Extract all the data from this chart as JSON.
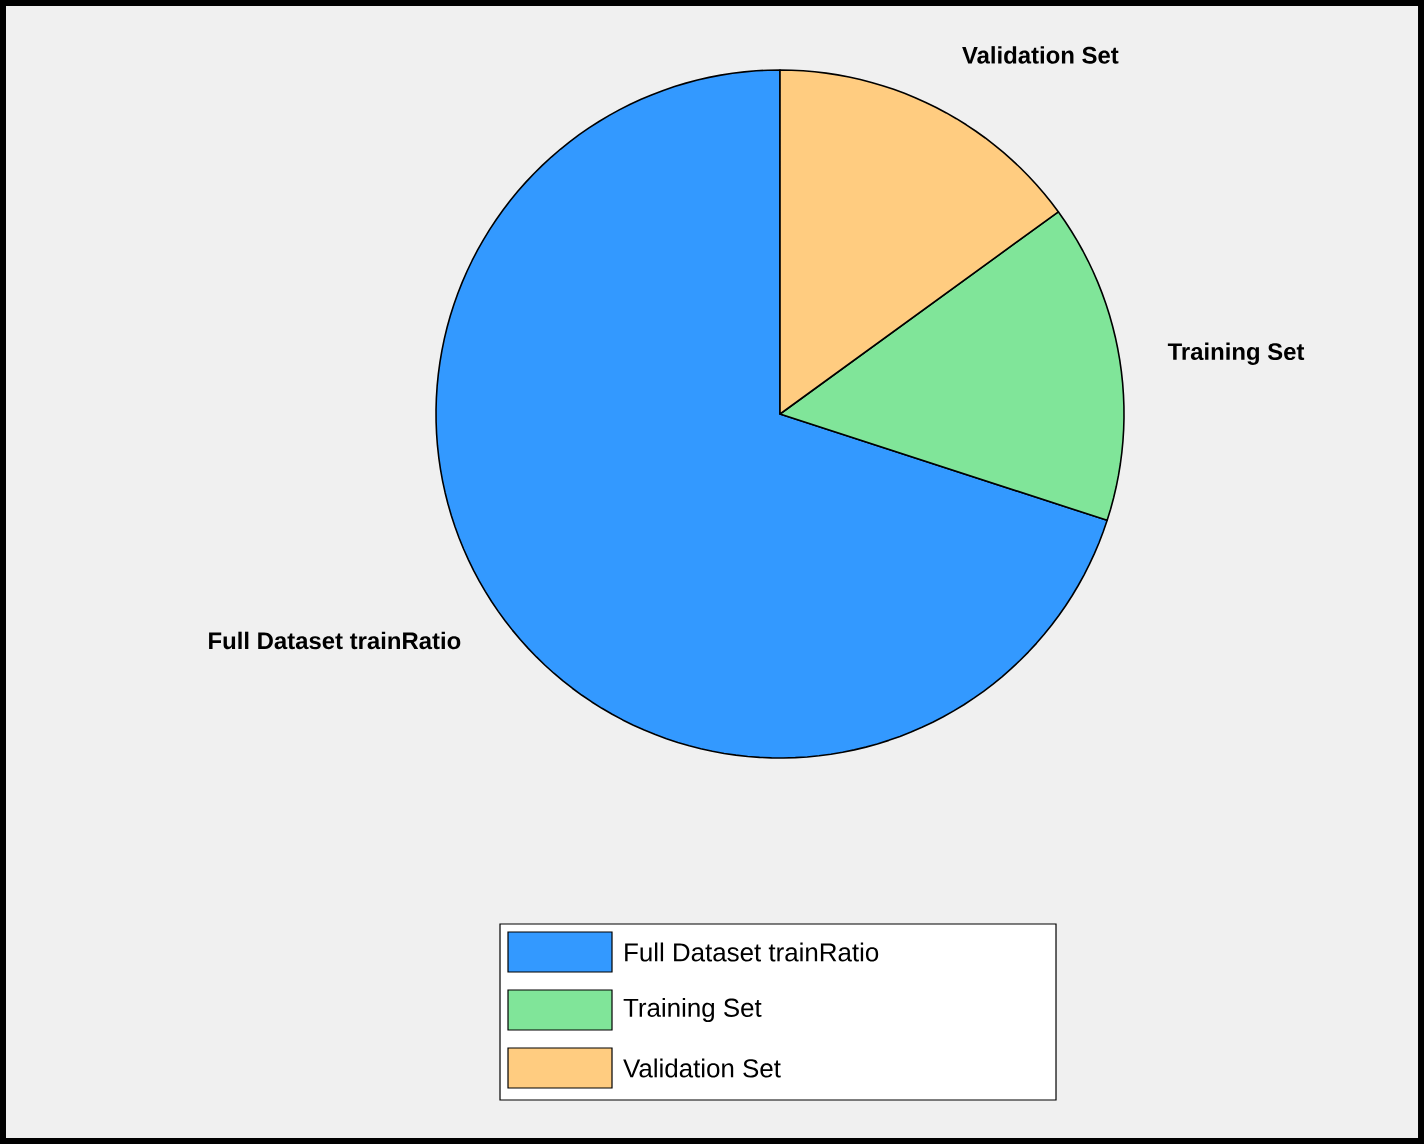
{
  "chart_data": {
    "type": "pie",
    "categories": [
      "Full Dataset trainRatio",
      "Training Set",
      "Validation Set"
    ],
    "values": [
      70,
      15,
      15
    ],
    "colors": [
      "#3399ff",
      "#80e599",
      "#ffcc80"
    ],
    "legend": "bottom"
  }
}
